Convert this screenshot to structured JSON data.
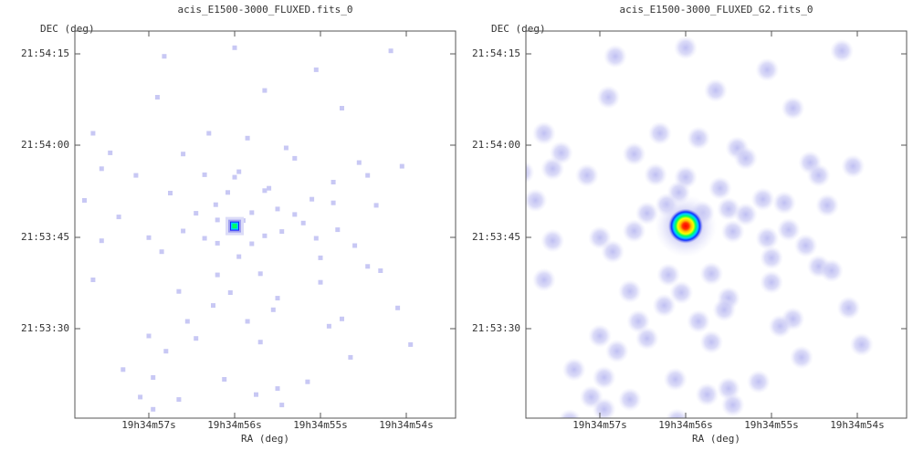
{
  "panels": [
    {
      "title": "acis_E1500-3000_FLUXED.fits_0",
      "ylabel": "DEC (deg)",
      "xlabel": "RA (deg)",
      "yticks": [
        "21:54:15",
        "21:54:00",
        "21:53:45",
        "21:53:30"
      ],
      "xticks": [
        "19h34m57s",
        "19h34m56s",
        "19h34m55s",
        "19h34m54s"
      ]
    },
    {
      "title": "acis_E1500-3000_FLUXED_G2.fits_0",
      "ylabel": "DEC (deg)",
      "xlabel": "RA (deg)",
      "yticks": [
        "21:54:15",
        "21:54:00",
        "21:53:45",
        "21:53:30"
      ],
      "xticks": [
        "19h34m57s",
        "19h34m56s",
        "19h34m55s",
        "19h34m54s"
      ]
    }
  ],
  "chart_data": [
    {
      "type": "heatmap",
      "title": "acis_E1500-3000_FLUXED.fits_0",
      "xlabel": "RA (deg)",
      "ylabel": "DEC (deg)",
      "x_tick_labels": [
        "19h34m57s",
        "19h34m56s",
        "19h34m55s",
        "19h34m54s"
      ],
      "y_tick_labels": [
        "21:54:15",
        "21:54:00",
        "21:53:45",
        "21:53:30"
      ],
      "colormap": [
        "#ffffff",
        "#c8c8f4",
        "#2020ff",
        "#00d0ff",
        "#00ff60",
        "#ffff00",
        "#ff8000",
        "#ff0000"
      ],
      "source": {
        "ra_s": 56.0,
        "dec_s": 46.8,
        "peak": 1.0,
        "style": "point"
      },
      "events": [
        [
          56.82,
          74.6
        ],
        [
          56.0,
          76.0
        ],
        [
          55.05,
          72.4
        ],
        [
          54.18,
          75.5
        ],
        [
          56.9,
          67.9
        ],
        [
          55.65,
          69.0
        ],
        [
          54.75,
          66.1
        ],
        [
          57.65,
          62.0
        ],
        [
          55.85,
          61.2
        ],
        [
          55.4,
          59.6
        ],
        [
          54.55,
          57.2
        ],
        [
          57.55,
          56.2
        ],
        [
          56.35,
          55.2
        ],
        [
          57.15,
          55.1
        ],
        [
          56.0,
          54.8
        ],
        [
          56.08,
          52.3
        ],
        [
          55.6,
          53.0
        ],
        [
          55.1,
          51.2
        ],
        [
          57.75,
          51.0
        ],
        [
          56.22,
          50.3
        ],
        [
          54.85,
          50.6
        ],
        [
          54.35,
          50.2
        ],
        [
          55.5,
          49.6
        ],
        [
          56.45,
          48.9
        ],
        [
          55.8,
          49.0
        ],
        [
          55.3,
          48.7
        ],
        [
          56.2,
          47.8
        ],
        [
          55.9,
          47.7
        ],
        [
          55.2,
          47.3
        ],
        [
          56.6,
          46.0
        ],
        [
          55.45,
          45.9
        ],
        [
          54.8,
          46.2
        ],
        [
          55.65,
          45.2
        ],
        [
          57.0,
          44.9
        ],
        [
          56.35,
          44.8
        ],
        [
          55.05,
          44.8
        ],
        [
          57.55,
          44.4
        ],
        [
          56.2,
          44.0
        ],
        [
          55.8,
          43.9
        ],
        [
          54.6,
          43.6
        ],
        [
          56.85,
          42.6
        ],
        [
          55.0,
          41.6
        ],
        [
          55.95,
          41.8
        ],
        [
          54.45,
          40.2
        ],
        [
          57.65,
          38.0
        ],
        [
          56.2,
          38.8
        ],
        [
          55.7,
          39.0
        ],
        [
          54.3,
          39.5
        ],
        [
          55.0,
          37.6
        ],
        [
          56.65,
          36.1
        ],
        [
          56.05,
          35.9
        ],
        [
          55.5,
          35.0
        ],
        [
          56.25,
          33.8
        ],
        [
          55.55,
          33.1
        ],
        [
          54.75,
          31.6
        ],
        [
          56.55,
          31.2
        ],
        [
          55.85,
          31.2
        ],
        [
          54.9,
          30.4
        ],
        [
          57.0,
          28.8
        ],
        [
          56.45,
          28.4
        ],
        [
          55.7,
          27.8
        ],
        [
          56.8,
          26.3
        ],
        [
          54.65,
          25.3
        ],
        [
          57.3,
          23.3
        ],
        [
          56.95,
          22.0
        ],
        [
          55.15,
          21.3
        ],
        [
          56.12,
          21.7
        ],
        [
          55.75,
          19.2
        ],
        [
          55.5,
          20.2
        ],
        [
          56.65,
          18.4
        ],
        [
          57.1,
          18.8
        ],
        [
          56.95,
          16.8
        ],
        [
          57.35,
          14.9
        ],
        [
          55.45,
          17.5
        ],
        [
          56.1,
          15.0
        ],
        [
          58.12,
          22.8
        ],
        [
          53.95,
          27.4
        ],
        [
          54.1,
          33.4
        ],
        [
          57.45,
          58.8
        ],
        [
          57.9,
          55.6
        ],
        [
          54.45,
          55.1
        ],
        [
          54.05,
          56.6
        ],
        [
          55.3,
          57.9
        ],
        [
          56.6,
          58.6
        ],
        [
          56.3,
          62.0
        ],
        [
          57.35,
          48.3
        ],
        [
          55.65,
          52.6
        ],
        [
          54.85,
          54.0
        ],
        [
          56.75,
          52.2
        ],
        [
          55.95,
          55.7
        ]
      ]
    },
    {
      "type": "heatmap",
      "title": "acis_E1500-3000_FLUXED_G2.fits_0",
      "xlabel": "RA (deg)",
      "ylabel": "DEC (deg)",
      "x_tick_labels": [
        "19h34m57s",
        "19h34m56s",
        "19h34m55s",
        "19h34m54s"
      ],
      "y_tick_labels": [
        "21:54:15",
        "21:54:00",
        "21:53:45",
        "21:53:30"
      ],
      "colormap": [
        "#ffffff",
        "#c8c8f4",
        "#2020ff",
        "#00d0ff",
        "#00ff60",
        "#ffff00",
        "#ff8000",
        "#ff0000"
      ],
      "source": {
        "ra_s": 56.0,
        "dec_s": 46.8,
        "peak": 1.0,
        "style": "smoothed"
      },
      "blobs": [
        [
          56.82,
          74.6
        ],
        [
          56.0,
          76.0
        ],
        [
          55.05,
          72.4
        ],
        [
          54.18,
          75.5
        ],
        [
          56.9,
          67.9
        ],
        [
          55.65,
          69.0
        ],
        [
          54.75,
          66.1
        ],
        [
          57.65,
          62.0
        ],
        [
          55.85,
          61.2
        ],
        [
          55.4,
          59.6
        ],
        [
          54.55,
          57.2
        ],
        [
          57.55,
          56.2
        ],
        [
          56.35,
          55.2
        ],
        [
          57.15,
          55.1
        ],
        [
          56.0,
          54.8
        ],
        [
          56.08,
          52.3
        ],
        [
          55.6,
          53.0
        ],
        [
          55.1,
          51.2
        ],
        [
          57.75,
          51.0
        ],
        [
          56.22,
          50.3
        ],
        [
          54.85,
          50.6
        ],
        [
          54.35,
          50.2
        ],
        [
          55.5,
          49.6
        ],
        [
          56.45,
          48.9
        ],
        [
          55.8,
          49.0
        ],
        [
          55.3,
          48.7
        ],
        [
          56.6,
          46.0
        ],
        [
          55.45,
          45.9
        ],
        [
          54.8,
          46.2
        ],
        [
          57.0,
          44.9
        ],
        [
          55.05,
          44.8
        ],
        [
          57.55,
          44.4
        ],
        [
          54.6,
          43.6
        ],
        [
          56.85,
          42.6
        ],
        [
          55.0,
          41.6
        ],
        [
          54.45,
          40.2
        ],
        [
          57.65,
          38.0
        ],
        [
          56.2,
          38.8
        ],
        [
          55.7,
          39.0
        ],
        [
          54.3,
          39.5
        ],
        [
          55.0,
          37.6
        ],
        [
          56.65,
          36.1
        ],
        [
          56.05,
          35.9
        ],
        [
          55.5,
          35.0
        ],
        [
          56.25,
          33.8
        ],
        [
          55.55,
          33.1
        ],
        [
          54.75,
          31.6
        ],
        [
          56.55,
          31.2
        ],
        [
          55.85,
          31.2
        ],
        [
          54.9,
          30.4
        ],
        [
          57.0,
          28.8
        ],
        [
          56.45,
          28.4
        ],
        [
          55.7,
          27.8
        ],
        [
          56.8,
          26.3
        ],
        [
          54.65,
          25.3
        ],
        [
          57.3,
          23.3
        ],
        [
          56.95,
          22.0
        ],
        [
          55.15,
          21.3
        ],
        [
          56.12,
          21.7
        ],
        [
          55.75,
          19.2
        ],
        [
          55.5,
          20.2
        ],
        [
          56.65,
          18.4
        ],
        [
          57.1,
          18.8
        ],
        [
          56.95,
          16.8
        ],
        [
          57.35,
          14.9
        ],
        [
          55.45,
          17.5
        ],
        [
          56.1,
          15.0
        ],
        [
          58.12,
          22.8
        ],
        [
          53.95,
          27.4
        ],
        [
          54.1,
          33.4
        ],
        [
          57.45,
          58.8
        ],
        [
          57.9,
          55.6
        ],
        [
          54.45,
          55.1
        ],
        [
          54.05,
          56.6
        ],
        [
          55.3,
          57.9
        ],
        [
          56.6,
          58.6
        ],
        [
          56.3,
          62.0
        ]
      ]
    }
  ]
}
